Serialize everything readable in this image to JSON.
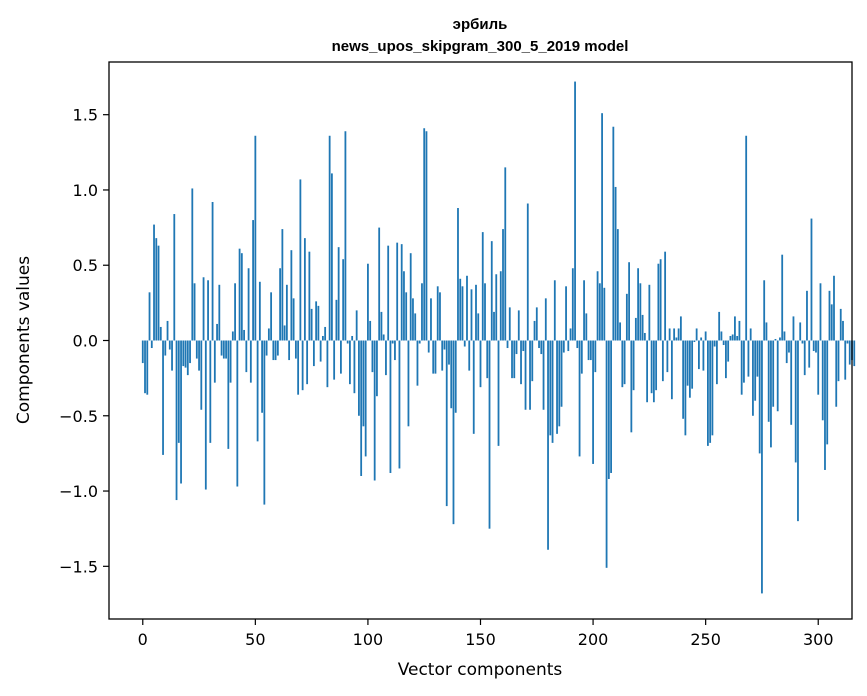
{
  "chart_data": {
    "type": "bar",
    "title": "эрбиль",
    "subtitle": "news_upos_skipgram_300_5_2019 model",
    "xlabel": "Vector components",
    "ylabel": "Components values",
    "xlim": [
      -15,
      315
    ],
    "ylim": [
      -1.85,
      1.85
    ],
    "x_ticks": [
      0,
      50,
      100,
      150,
      200,
      250,
      300
    ],
    "x_tick_labels": [
      "0",
      "50",
      "100",
      "150",
      "200",
      "250",
      "300"
    ],
    "y_ticks": [
      -1.5,
      -1.0,
      -0.5,
      0.0,
      0.5,
      1.0,
      1.5
    ],
    "y_tick_labels": [
      "−1.5",
      "−1.0",
      "−0.5",
      "0.0",
      "0.5",
      "1.0",
      "1.5"
    ],
    "grid": false,
    "bar_color": "#1f77b4",
    "values": [
      -0.15,
      -0.35,
      -0.36,
      0.32,
      -0.05,
      0.77,
      0.68,
      0.63,
      0.09,
      -0.76,
      -0.1,
      0.13,
      -0.06,
      -0.2,
      0.84,
      -1.06,
      -0.68,
      -0.95,
      -0.17,
      -0.18,
      -0.23,
      -0.15,
      1.01,
      0.38,
      -0.12,
      -0.2,
      -0.46,
      0.42,
      -0.99,
      0.4,
      -0.68,
      0.92,
      -0.28,
      0.11,
      0.37,
      -0.1,
      -0.12,
      -0.12,
      -0.72,
      -0.28,
      0.06,
      0.38,
      -0.97,
      0.61,
      0.58,
      0.07,
      -0.21,
      0.48,
      -0.28,
      0.8,
      1.36,
      -0.67,
      0.39,
      -0.48,
      -1.09,
      -0.1,
      0.08,
      0.32,
      -0.13,
      -0.13,
      -0.1,
      0.48,
      0.74,
      0.1,
      0.37,
      -0.13,
      0.6,
      0.28,
      -0.12,
      -0.36,
      1.07,
      -0.33,
      0.68,
      -0.29,
      0.59,
      0.21,
      -0.17,
      0.26,
      0.23,
      -0.14,
      0.03,
      0.09,
      -0.31,
      1.36,
      1.11,
      -0.26,
      0.27,
      0.62,
      -0.22,
      0.54,
      1.39,
      -0.02,
      -0.29,
      0.03,
      -0.35,
      0.2,
      -0.5,
      -0.9,
      -0.57,
      -0.77,
      0.51,
      0.13,
      -0.21,
      -0.93,
      -0.37,
      0.75,
      0.19,
      0.04,
      -0.23,
      0.63,
      -0.88,
      -0.02,
      -0.13,
      0.65,
      -0.85,
      0.64,
      0.46,
      0.32,
      -0.57,
      0.58,
      0.28,
      0.18,
      -0.3,
      -0.02,
      0.38,
      1.41,
      1.39,
      -0.08,
      0.28,
      -0.22,
      -0.22,
      0.36,
      0.32,
      -0.2,
      -0.06,
      -1.1,
      -0.16,
      -0.45,
      -1.22,
      -0.48,
      0.88,
      0.41,
      0.36,
      -0.04,
      0.43,
      -0.2,
      0.34,
      -0.62,
      0.37,
      0.18,
      -0.31,
      0.72,
      0.38,
      -0.25,
      -1.25,
      0.66,
      0.19,
      0.44,
      -0.7,
      0.46,
      0.74,
      1.15,
      -0.05,
      0.22,
      -0.25,
      -0.25,
      -0.09,
      0.2,
      -0.29,
      -0.07,
      -0.46,
      0.91,
      -0.46,
      -0.27,
      0.13,
      0.22,
      -0.05,
      -0.09,
      -0.46,
      0.28,
      -1.39,
      -0.63,
      -0.68,
      0.4,
      -0.62,
      -0.57,
      -0.44,
      -0.08,
      0.36,
      -0.07,
      0.08,
      0.48,
      1.72,
      -0.05,
      -0.77,
      -0.22,
      0.4,
      0.18,
      -0.13,
      -0.13,
      -0.82,
      -0.21,
      0.46,
      0.38,
      1.51,
      0.35,
      -1.51,
      -0.92,
      -0.88,
      1.42,
      1.02,
      0.74,
      0.12,
      -0.31,
      -0.29,
      0.31,
      0.52,
      -0.61,
      -0.33,
      0.15,
      0.48,
      0.38,
      0.17,
      0.05,
      -0.41,
      0.37,
      -0.35,
      -0.41,
      -0.33,
      0.51,
      0.54,
      -0.27,
      0.59,
      -0.21,
      0.08,
      -0.39,
      0.08,
      0.02,
      0.08,
      0.16,
      -0.52,
      -0.63,
      -0.3,
      -0.38,
      -0.32,
      -0.01,
      0.08,
      -0.19,
      0.02,
      -0.2,
      0.06,
      -0.7,
      -0.68,
      -0.63,
      -0.04,
      -0.29,
      0.19,
      0.06,
      -0.03,
      -0.25,
      -0.14,
      0.03,
      0.04,
      0.16,
      0.03,
      0.13,
      -0.36,
      -0.28,
      1.36,
      -0.24,
      0.08,
      -0.5,
      -0.4,
      -0.24,
      -0.75,
      -1.68,
      0.4,
      0.12,
      -0.54,
      -0.71,
      -0.44,
      0.01,
      -0.47,
      0.02,
      0.57,
      0.06,
      -0.15,
      -0.08,
      -0.56,
      0.16,
      -0.81,
      -1.2,
      0.12,
      -0.02,
      -0.23,
      0.33,
      -0.18,
      0.81,
      -0.07,
      -0.08,
      -0.36,
      0.38,
      -0.53,
      -0.86,
      -0.69,
      0.33,
      0.24,
      0.43,
      -0.44,
      -0.27,
      0.21,
      0.13,
      -0.26,
      -0.02,
      -0.16,
      -0.13,
      -0.17
    ]
  }
}
